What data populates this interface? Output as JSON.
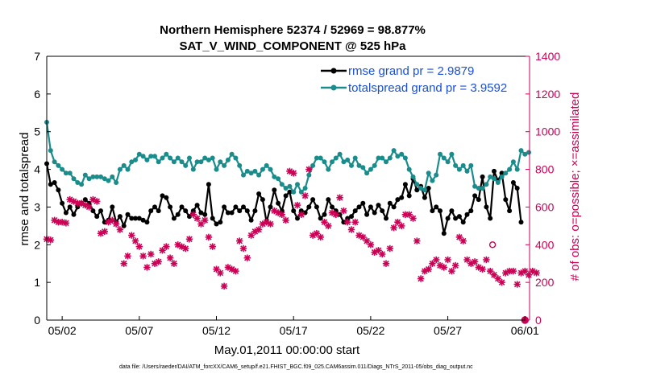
{
  "chart_data": {
    "type": "line",
    "title": "Northern Hemisphere 52374 / 52969 = 98.877%",
    "subtitle": "SAT_V_WIND_COMPONENT @ 525 hPa",
    "xlabel": "May.01,2011 00:00:00 start",
    "ylabel": "rmse and totalspread",
    "ylabel_right": "# of obs: o=possible; ×=assimilated",
    "x_ticks": [
      "05/02",
      "05/07",
      "05/12",
      "05/17",
      "05/22",
      "05/27",
      "06/01"
    ],
    "x_tick_days": [
      1,
      6,
      11,
      16,
      21,
      26,
      31
    ],
    "xlim": [
      0,
      31.3
    ],
    "ylim": [
      0,
      7
    ],
    "yticks": [
      0,
      1,
      2,
      3,
      4,
      5,
      6,
      7
    ],
    "ylim_right": [
      0,
      1400
    ],
    "yticks_right": [
      0,
      200,
      400,
      600,
      800,
      1000,
      1200,
      1400
    ],
    "legend_position": "top-right",
    "footnote": "data file: /Users/raeder/DAI/ATM_forcXX/CAM6_setup/f.e21.FHIST_BGC.f09_025.CAM6assim.011/Diags_NTrS_2011-05/obs_diag_output.nc",
    "series": [
      {
        "name": "rmse grand pr = 2.9879",
        "color": "#000000",
        "axis": "left",
        "marker": "circle",
        "values": [
          4.15,
          3.6,
          3.65,
          3.45,
          3.1,
          2.85,
          3.0,
          2.8,
          3.0,
          3.1,
          3.2,
          3.1,
          2.9,
          2.75,
          2.9,
          2.6,
          2.65,
          3.0,
          2.6,
          2.75,
          2.5,
          2.8,
          2.7,
          2.7,
          2.7,
          2.65,
          2.6,
          2.9,
          3.0,
          2.9,
          3.3,
          3.25,
          3.0,
          2.7,
          2.8,
          3.0,
          2.9,
          2.75,
          2.9,
          3.05,
          2.85,
          2.8,
          3.6,
          2.7,
          2.55,
          2.6,
          3.0,
          2.85,
          2.85,
          3.0,
          2.9,
          3.0,
          2.9,
          2.65,
          2.9,
          3.35,
          3.2,
          2.6,
          3.0,
          3.45,
          3.1,
          2.9,
          3.3,
          3.4,
          2.9,
          2.7,
          2.9,
          2.85,
          3.0,
          3.2,
          3.0,
          2.7,
          2.8,
          3.2,
          3.0,
          2.9,
          2.8,
          2.6,
          2.7,
          2.75,
          2.9,
          3.0,
          3.1,
          2.8,
          3.0,
          2.85,
          3.05,
          2.9,
          2.7,
          3.1,
          3.0,
          3.2,
          3.25,
          3.6,
          3.3,
          3.75,
          3.45,
          3.55,
          3.25,
          3.5,
          2.9,
          3.0,
          2.9,
          2.3,
          2.7,
          2.9,
          2.7,
          2.75,
          2.6,
          2.8,
          2.9,
          3.3,
          3.2,
          3.8,
          3.0,
          2.7,
          3.95,
          3.7,
          3.9,
          3.2,
          2.9,
          3.65,
          3.5,
          2.6
        ],
        "x_start": 0.0,
        "x_step": 0.25
      },
      {
        "name": "totalspread grand pr = 3.9592",
        "color": "#1a8c8c",
        "axis": "left",
        "marker": "circle",
        "values": [
          5.25,
          4.5,
          4.2,
          4.1,
          4.0,
          3.9,
          3.9,
          3.75,
          3.65,
          3.6,
          3.85,
          3.75,
          3.8,
          3.8,
          3.8,
          3.75,
          3.7,
          3.8,
          3.65,
          4.0,
          4.1,
          4.0,
          4.2,
          4.25,
          4.4,
          4.35,
          4.25,
          4.35,
          4.35,
          4.2,
          4.3,
          4.4,
          4.3,
          4.2,
          4.3,
          4.2,
          4.1,
          4.3,
          4.0,
          4.2,
          4.2,
          4.3,
          4.25,
          4.3,
          4.0,
          4.2,
          4.1,
          4.25,
          4.4,
          4.3,
          4.1,
          3.85,
          3.95,
          3.9,
          3.95,
          3.85,
          4.0,
          4.1,
          4.0,
          3.8,
          3.75,
          3.6,
          3.5,
          3.55,
          3.4,
          3.6,
          3.4,
          3.5,
          3.85,
          4.1,
          4.3,
          4.3,
          4.2,
          4.0,
          4.2,
          4.3,
          4.4,
          4.2,
          4.25,
          4.1,
          4.3,
          4.1,
          4.05,
          3.9,
          4.0,
          4.1,
          4.3,
          4.3,
          4.2,
          4.3,
          4.5,
          4.35,
          4.4,
          4.3,
          4.0,
          3.8,
          3.6,
          3.5,
          3.45,
          3.9,
          3.7,
          3.85,
          4.4,
          4.3,
          4.2,
          4.4,
          4.1,
          4.0,
          4.1,
          3.95,
          4.1,
          3.55,
          3.5,
          3.5,
          3.6,
          3.8,
          3.75,
          3.65,
          3.8,
          3.9,
          4.0,
          4.2,
          4.0,
          4.5,
          4.4,
          4.45
        ],
        "x_start": 0.0,
        "x_step": 0.25
      },
      {
        "name": "# of obs assimilated",
        "color": "#cc0055",
        "axis": "right",
        "marker": "x",
        "values": [
          430,
          425,
          530,
          520,
          520,
          515,
          640,
          630,
          620,
          620,
          610,
          600,
          640,
          630,
          460,
          470,
          520,
          530,
          510,
          480,
          300,
          340,
          450,
          420,
          390,
          340,
          280,
          350,
          300,
          310,
          370,
          390,
          330,
          300,
          400,
          390,
          380,
          430,
          560,
          540,
          510,
          530,
          440,
          390,
          270,
          250,
          180,
          280,
          270,
          260,
          420,
          380,
          330,
          450,
          470,
          480,
          510,
          520,
          510,
          580,
          570,
          560,
          530,
          790,
          780,
          610,
          560,
          660,
          800,
          450,
          460,
          440,
          520,
          500,
          570,
          560,
          650,
          580,
          520,
          480,
          520,
          450,
          440,
          420,
          400,
          360,
          370,
          350,
          300,
          380,
          490,
          520,
          500,
          560,
          560,
          540,
          420,
          220,
          260,
          270,
          300,
          320,
          290,
          280,
          320,
          260,
          290,
          440,
          420,
          320,
          300,
          310,
          280,
          270,
          320,
          260,
          240,
          220,
          200,
          250,
          260,
          260,
          190,
          250,
          260,
          240,
          260,
          250
        ],
        "x_start": 0.0,
        "x_step": 0.25
      },
      {
        "name": "# of obs possible",
        "color": "#cc0055",
        "axis": "right",
        "marker": "o",
        "values": [
          400,
          0
        ],
        "x": [
          28.9,
          31.0
        ]
      }
    ]
  }
}
